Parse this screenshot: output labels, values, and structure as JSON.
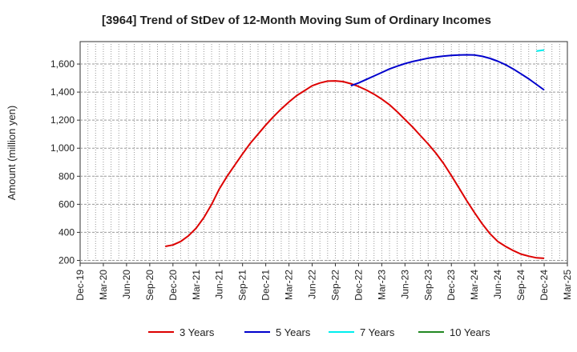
{
  "chart_data": {
    "type": "line",
    "title": "[3964]  Trend of StDev of 12-Month Moving Sum of Ordinary Incomes",
    "ylabel": "Amount (million yen)",
    "xlabel": "",
    "ylim": [
      180,
      1760
    ],
    "yticks": [
      200,
      400,
      600,
      800,
      1000,
      1200,
      1400,
      1600
    ],
    "ytick_labels": [
      "200",
      "400",
      "600",
      "800",
      "1,000",
      "1,200",
      "1,400",
      "1,600"
    ],
    "xticks": [
      "Dec-19",
      "Mar-20",
      "Jun-20",
      "Sep-20",
      "Dec-20",
      "Mar-21",
      "Jun-21",
      "Sep-21",
      "Dec-21",
      "Mar-22",
      "Jun-22",
      "Sep-22",
      "Dec-22",
      "Mar-23",
      "Jun-23",
      "Sep-23",
      "Dec-23",
      "Mar-24",
      "Jun-24",
      "Sep-24",
      "Dec-24",
      "Mar-25"
    ],
    "grid": true,
    "legend_position": "bottom",
    "series": [
      {
        "name": "3 Years",
        "color": "#dd0000",
        "x": [
          "Nov-20",
          "Dec-20",
          "Jan-21",
          "Feb-21",
          "Mar-21",
          "Apr-21",
          "May-21",
          "Jun-21",
          "Jul-21",
          "Aug-21",
          "Sep-21",
          "Oct-21",
          "Nov-21",
          "Dec-21",
          "Jan-22",
          "Feb-22",
          "Mar-22",
          "Apr-22",
          "May-22",
          "Jun-22",
          "Jul-22",
          "Aug-22",
          "Sep-22",
          "Oct-22",
          "Nov-22",
          "Dec-22",
          "Jan-23",
          "Feb-23",
          "Mar-23",
          "Apr-23",
          "May-23",
          "Jun-23",
          "Jul-23",
          "Aug-23",
          "Sep-23",
          "Oct-23",
          "Nov-23",
          "Dec-23",
          "Jan-24",
          "Feb-24",
          "Mar-24",
          "Apr-24",
          "May-24",
          "Jun-24",
          "Jul-24",
          "Aug-24",
          "Sep-24",
          "Oct-24",
          "Nov-24",
          "Dec-24"
        ],
        "values": [
          300,
          310,
          335,
          375,
          430,
          505,
          600,
          710,
          800,
          880,
          960,
          1035,
          1100,
          1165,
          1225,
          1280,
          1330,
          1375,
          1410,
          1445,
          1465,
          1478,
          1480,
          1475,
          1460,
          1440,
          1415,
          1385,
          1350,
          1310,
          1260,
          1205,
          1150,
          1090,
          1030,
          965,
          890,
          805,
          715,
          625,
          540,
          460,
          390,
          335,
          300,
          270,
          245,
          230,
          218,
          215
        ]
      },
      {
        "name": "5 Years",
        "color": "#0000cc",
        "x": [
          "Nov-22",
          "Dec-22",
          "Jan-23",
          "Feb-23",
          "Mar-23",
          "Apr-23",
          "May-23",
          "Jun-23",
          "Jul-23",
          "Aug-23",
          "Sep-23",
          "Oct-23",
          "Nov-23",
          "Dec-23",
          "Jan-24",
          "Feb-24",
          "Mar-24",
          "Apr-24",
          "May-24",
          "Jun-24",
          "Jul-24",
          "Aug-24",
          "Sep-24",
          "Oct-24",
          "Nov-24",
          "Dec-24"
        ],
        "values": [
          1445,
          1465,
          1490,
          1515,
          1540,
          1565,
          1585,
          1603,
          1618,
          1630,
          1642,
          1650,
          1657,
          1662,
          1665,
          1666,
          1664,
          1655,
          1640,
          1620,
          1595,
          1565,
          1530,
          1495,
          1455,
          1415
        ]
      },
      {
        "name": "7 Years",
        "color": "#00eeee",
        "x": [
          "Nov-24",
          "Dec-24"
        ],
        "values": [
          1692,
          1700
        ]
      },
      {
        "name": "10 Years",
        "color": "#228822",
        "x": [],
        "values": []
      }
    ]
  }
}
